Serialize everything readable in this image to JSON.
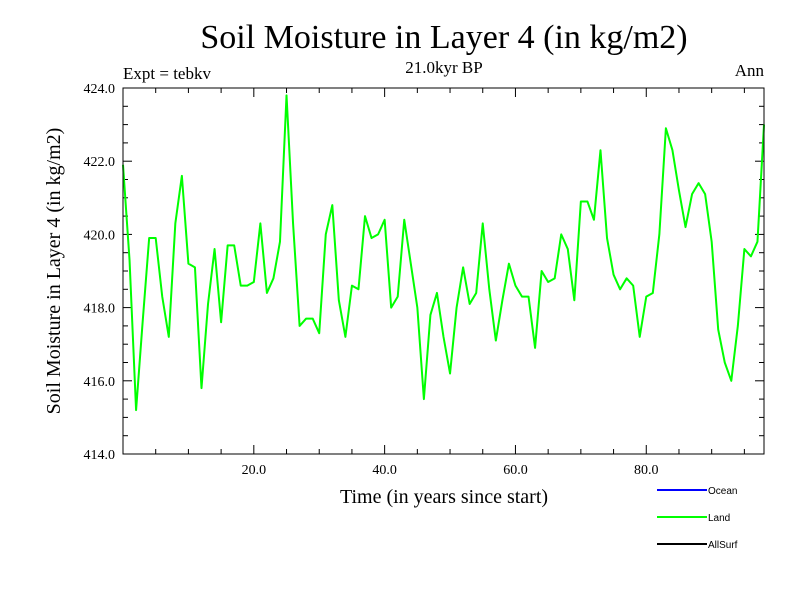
{
  "chart_data": {
    "type": "line",
    "title": "Soil Moisture in Layer 4 (in kg/m2)",
    "subtitle": "21.0kyr BP",
    "left_label": "Expt = tebkv",
    "right_label": "Ann",
    "xlabel": "Time (in years since start)",
    "ylabel": "Soil Moisture in Layer 4 (in kg/m2)",
    "xlim": [
      0,
      98
    ],
    "ylim": [
      414,
      424
    ],
    "xticks": [
      20,
      40,
      60,
      80
    ],
    "xtick_labels": [
      "20.0",
      "40.0",
      "60.0",
      "80.0"
    ],
    "yticks": [
      414,
      416,
      418,
      420,
      422,
      424
    ],
    "ytick_labels": [
      "414.0",
      "416.0",
      "418.0",
      "420.0",
      "422.0",
      "424.0"
    ],
    "x": [
      0,
      1,
      2,
      3,
      4,
      5,
      6,
      7,
      8,
      9,
      10,
      11,
      12,
      13,
      14,
      15,
      16,
      17,
      18,
      19,
      20,
      21,
      22,
      23,
      24,
      25,
      26,
      27,
      28,
      29,
      30,
      31,
      32,
      33,
      34,
      35,
      36,
      37,
      38,
      39,
      40,
      41,
      42,
      43,
      44,
      45,
      46,
      47,
      48,
      49,
      50,
      51,
      52,
      53,
      54,
      55,
      56,
      57,
      58,
      59,
      60,
      61,
      62,
      63,
      64,
      65,
      66,
      67,
      68,
      69,
      70,
      71,
      72,
      73,
      74,
      75,
      76,
      77,
      78,
      79,
      80,
      81,
      82,
      83,
      84,
      85,
      86,
      87,
      88,
      89,
      90,
      91,
      92,
      93,
      94,
      95,
      96,
      97,
      98
    ],
    "series": [
      {
        "name": "Land",
        "color": "#00ff00",
        "values": [
          421.9,
          419.3,
          415.2,
          417.6,
          419.9,
          419.9,
          418.3,
          417.2,
          420.3,
          421.6,
          419.2,
          419.1,
          415.8,
          418.1,
          419.6,
          417.6,
          419.7,
          419.7,
          418.6,
          418.6,
          418.7,
          420.3,
          418.4,
          418.8,
          419.8,
          423.8,
          420.3,
          417.5,
          417.7,
          417.7,
          417.3,
          420.0,
          420.8,
          418.2,
          417.2,
          418.6,
          418.5,
          420.5,
          419.9,
          420.0,
          420.4,
          418.0,
          418.3,
          420.4,
          419.2,
          418.0,
          415.5,
          417.8,
          418.4,
          417.2,
          416.2,
          418.0,
          419.1,
          418.1,
          418.4,
          420.3,
          418.5,
          417.1,
          418.2,
          419.2,
          418.6,
          418.3,
          418.3,
          416.9,
          419.0,
          418.7,
          418.8,
          420.0,
          419.6,
          418.2,
          420.9,
          420.9,
          420.4,
          422.3,
          419.9,
          418.9,
          418.5,
          418.8,
          418.6,
          417.2,
          418.3,
          418.4,
          420.0,
          422.9,
          422.3,
          421.2,
          420.2,
          421.1,
          421.4,
          421.1,
          419.8,
          417.4,
          416.5,
          416.0,
          417.5,
          419.6,
          419.4,
          419.8,
          423.0
        ]
      }
    ],
    "legend": [
      {
        "label": "Ocean",
        "color": "#0000ff"
      },
      {
        "label": "Land",
        "color": "#00ff00"
      },
      {
        "label": "AllSurf",
        "color": "#000000"
      }
    ],
    "legend_position": "bottom-right",
    "grid": false
  }
}
